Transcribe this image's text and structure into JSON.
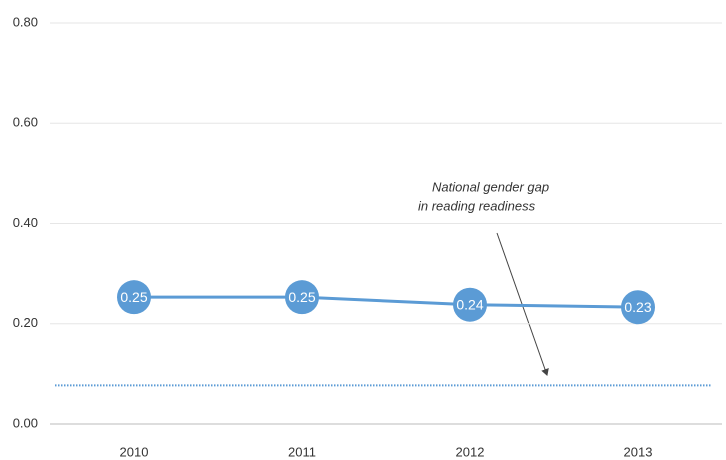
{
  "chart_data": {
    "type": "line",
    "categories": [
      "2010",
      "2011",
      "2012",
      "2013"
    ],
    "series": [
      {
        "color": "#5b9bd5",
        "values": [
          0.253,
          0.253,
          0.238,
          0.233
        ],
        "value_labels": [
          "0.25",
          "0.25",
          "0.24",
          "0.23"
        ]
      }
    ],
    "reference_line": {
      "value": 0.077,
      "color": "#5b9bd5",
      "style": "dotted"
    },
    "ylim": [
      0,
      0.8
    ],
    "yticks": [
      {
        "value": 0,
        "label": "0.00"
      },
      {
        "value": 0.2,
        "label": "0.20"
      },
      {
        "value": 0.4,
        "label": "0.40"
      },
      {
        "value": 0.6,
        "label": "0.60"
      },
      {
        "value": 0.8,
        "label": "0.80"
      }
    ],
    "grid": true,
    "annotation": [
      "National gender gap",
      "in reading readiness"
    ]
  }
}
